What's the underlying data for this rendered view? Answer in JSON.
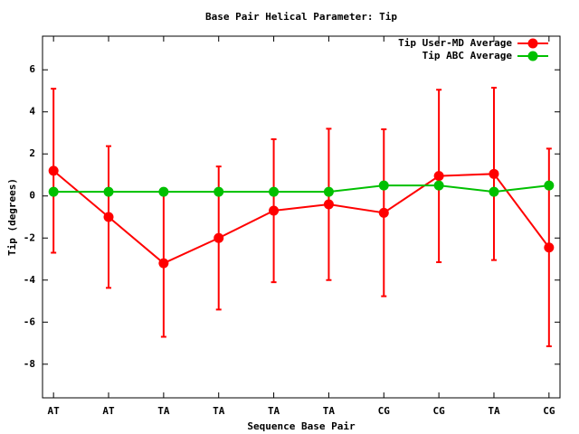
{
  "chart_data": {
    "type": "line",
    "title": "Base Pair Helical Parameter: Tip",
    "x_label": "Sequence Base Pair",
    "y_label": "Tip (degrees)",
    "categories": [
      "AT",
      "AT",
      "TA",
      "TA",
      "TA",
      "TA",
      "CG",
      "CG",
      "TA",
      "CG"
    ],
    "series": [
      {
        "name": "Tip User-MD Average",
        "color": "#ff0000",
        "values": [
          1.2,
          -1.0,
          -3.2,
          -2.0,
          -0.7,
          -0.4,
          -0.8,
          0.95,
          1.05,
          -2.45
        ],
        "errors": [
          3.9,
          3.37,
          3.5,
          3.4,
          3.4,
          3.6,
          3.97,
          4.1,
          4.1,
          4.7
        ]
      },
      {
        "name": "Tip ABC Average",
        "color": "#00c000",
        "values": [
          0.2,
          0.2,
          0.2,
          0.2,
          0.2,
          0.2,
          0.5,
          0.5,
          0.2,
          0.5
        ]
      }
    ],
    "ylim": [
      -9.6,
      7.6
    ],
    "yticks": [
      -8,
      -6,
      -4,
      -2,
      0,
      2,
      4,
      6
    ],
    "legend": "top-right"
  }
}
